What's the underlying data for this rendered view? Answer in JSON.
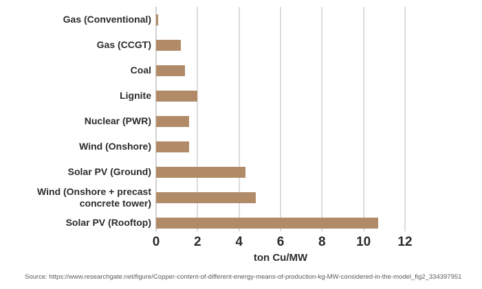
{
  "figure": {
    "background": "#ffffff",
    "text_color": "#2b2b2b"
  },
  "chart_data": {
    "type": "bar",
    "orientation": "horizontal",
    "title": "",
    "categories": [
      "Gas (Conventional)",
      "Gas (CCGT)",
      "Coal",
      "Lignite",
      "Nuclear (PWR)",
      "Wind (Onshore)",
      "Solar PV (Ground)",
      "Wind (Onshore + precast concrete tower)",
      "Solar PV (Rooftop)"
    ],
    "values": [
      0.1,
      1.2,
      1.4,
      2.0,
      1.6,
      1.6,
      4.3,
      4.8,
      10.7
    ],
    "xlabel": "ton Cu/MW",
    "xlim": [
      0,
      12
    ],
    "xticks": [
      0,
      2,
      4,
      6,
      8,
      10,
      12
    ],
    "grid": true,
    "legend": false,
    "bar_color": "#b18a68",
    "gridline_color": "#dcdcdc",
    "zero_line_color": "#d0d0d0"
  },
  "source": {
    "text": "Source: https://www.researchgate.net/figure/Copper-content-of-different-energy-means-of-production-kg-MW-considered-in-the-model_fig2_334397951"
  }
}
